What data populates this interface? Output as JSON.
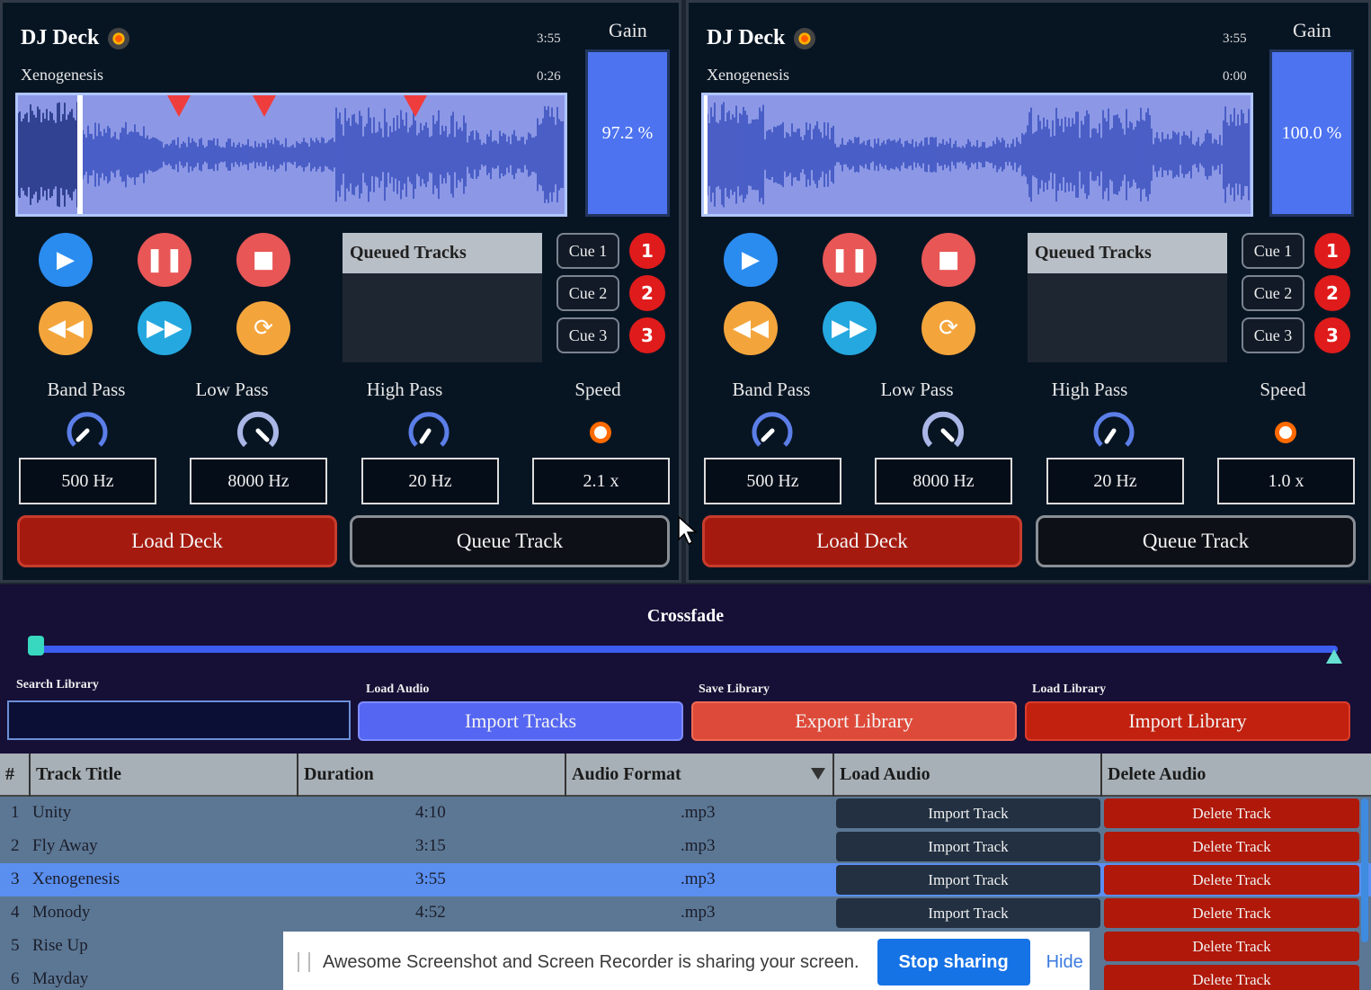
{
  "decks": [
    {
      "title": "DJ Deck",
      "total_time": "3:55",
      "track": "Xenogenesis",
      "position": "0:26",
      "gain_label": "Gain",
      "gain_value": "97.2 %",
      "gain_level": 0.972,
      "progress": 0.11,
      "cue_positions": [
        0.29,
        0.45,
        0.72
      ],
      "queue_header": "Queued Tracks",
      "cues": [
        "Cue 1",
        "Cue 2",
        "Cue 3"
      ],
      "cue_numbers": [
        "1",
        "2",
        "3"
      ],
      "filters": [
        {
          "label": "Band Pass",
          "value": "500 Hz"
        },
        {
          "label": "Low Pass",
          "value": "8000 Hz"
        },
        {
          "label": "High Pass",
          "value": "20 Hz"
        },
        {
          "label": "Speed",
          "value": "2.1 x"
        }
      ],
      "load_label": "Load Deck",
      "queue_label": "Queue Track"
    },
    {
      "title": "DJ Deck",
      "total_time": "3:55",
      "track": "Xenogenesis",
      "position": "0:00",
      "gain_label": "Gain",
      "gain_value": "100.0 %",
      "gain_level": 1.0,
      "progress": 0.0,
      "cue_positions": [],
      "queue_header": "Queued Tracks",
      "cues": [
        "Cue 1",
        "Cue 2",
        "Cue 3"
      ],
      "cue_numbers": [
        "1",
        "2",
        "3"
      ],
      "filters": [
        {
          "label": "Band Pass",
          "value": "500 Hz"
        },
        {
          "label": "Low Pass",
          "value": "8000 Hz"
        },
        {
          "label": "High Pass",
          "value": "20 Hz"
        },
        {
          "label": "Speed",
          "value": "1.0 x"
        }
      ],
      "load_label": "Load Deck",
      "queue_label": "Queue Track"
    }
  ],
  "crossfade": {
    "label": "Crossfade",
    "value": 0.0
  },
  "library": {
    "search_label": "Search Library",
    "search_value": "",
    "load_audio_label": "Load Audio",
    "import_tracks": "Import Tracks",
    "save_library_label": "Save Library",
    "export_library": "Export Library",
    "load_library_label": "Load Library",
    "import_library": "Import Library"
  },
  "table": {
    "headers": [
      "#",
      "Track Title",
      "Duration",
      "Audio Format",
      "Load Audio",
      "Delete Audio"
    ],
    "rows": [
      {
        "num": "1",
        "title": "Unity",
        "duration": "4:10",
        "format": ".mp3",
        "import": "Import Track",
        "delete": "Delete Track"
      },
      {
        "num": "2",
        "title": "Fly Away",
        "duration": "3:15",
        "format": ".mp3",
        "import": "Import Track",
        "delete": "Delete Track"
      },
      {
        "num": "3",
        "title": "Xenogenesis",
        "duration": "3:55",
        "format": ".mp3",
        "import": "Import Track",
        "delete": "Delete Track",
        "selected": true
      },
      {
        "num": "4",
        "title": "Monody",
        "duration": "4:52",
        "format": ".mp3",
        "import": "Import Track",
        "delete": "Delete Track"
      },
      {
        "num": "5",
        "title": "Rise Up",
        "duration": "",
        "format": "",
        "import": "",
        "delete": "Delete Track"
      },
      {
        "num": "6",
        "title": "Mayday",
        "duration": "",
        "format": "",
        "import": "",
        "delete": "Delete Track"
      }
    ]
  },
  "share_bar": {
    "text": "Awesome Screenshot and Screen Recorder is sharing your screen.",
    "stop": "Stop sharing",
    "hide": "Hide"
  },
  "icons": {
    "play": "play-icon",
    "pause": "pause-icon",
    "stop": "stop-icon",
    "rewind": "rewind-icon",
    "forward": "fast-forward-icon",
    "loop": "loop-icon"
  }
}
